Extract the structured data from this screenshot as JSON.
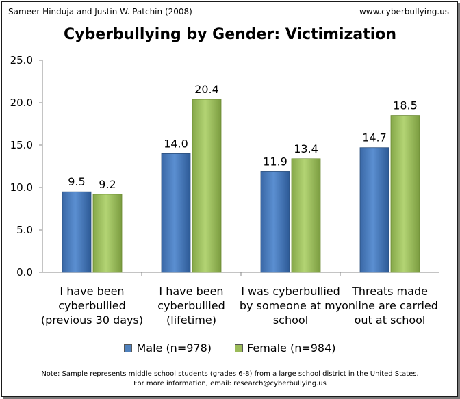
{
  "header": {
    "credit_left": "Sameer Hinduja and Justin W. Patchin (2008)",
    "credit_right": "www.cyberbullying.us"
  },
  "chart_data": {
    "type": "bar",
    "title": "Cyberbullying by Gender: Victimization",
    "categories": [
      [
        "I have been",
        "cyberbullied",
        "(previous 30 days)"
      ],
      [
        "I have been",
        "cyberbullied",
        "(lifetime)"
      ],
      [
        "I was cyberbullied",
        "by someone at my",
        "school"
      ],
      [
        "Threats made",
        "online are carried",
        "out at school"
      ]
    ],
    "series": [
      {
        "name": "Male (n=978)",
        "color": "#4f81bd",
        "values": [
          9.5,
          14.0,
          11.9,
          14.7
        ]
      },
      {
        "name": "Female (n=984)",
        "color": "#9bbb59",
        "values": [
          9.2,
          20.4,
          13.4,
          18.5
        ]
      }
    ],
    "ylim": [
      0,
      25
    ],
    "yticks": [
      "0.0",
      "5.0",
      "10.0",
      "15.0",
      "20.0",
      "25.0"
    ],
    "xlabel": "",
    "ylabel": "",
    "grid": false,
    "legend": "bottom"
  },
  "footer": {
    "note_line1": "Note: Sample represents middle school students (grades 6-8) from a large school district in the United States.",
    "note_line2": "For more information, email: research@cyberbullying.us"
  }
}
